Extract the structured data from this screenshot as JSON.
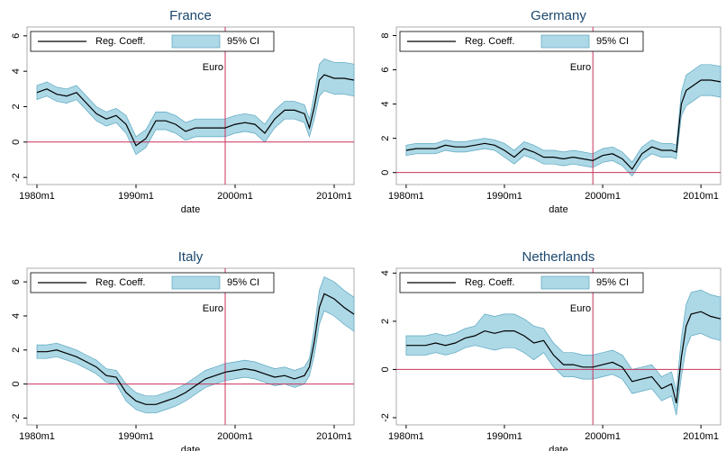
{
  "chart_data": [
    {
      "type": "line",
      "title": "France",
      "xlabel": "date",
      "x": [
        1980,
        1981,
        1982,
        1983,
        1984,
        1985,
        1986,
        1987,
        1988,
        1989,
        1990,
        1991,
        1992,
        1993,
        1994,
        1995,
        1996,
        1997,
        1998,
        1999,
        2000,
        2001,
        2002,
        2003,
        2004,
        2005,
        2006,
        2007,
        2007.5,
        2008,
        2008.5,
        2009,
        2010,
        2011,
        2012
      ],
      "xlim": [
        1979,
        2012
      ],
      "xticks": [
        {
          "value": 1980,
          "label": "1980m1"
        },
        {
          "value": 1990,
          "label": "1990m1"
        },
        {
          "value": 2000,
          "label": "2000m1"
        },
        {
          "value": 2010,
          "label": "2010m1"
        }
      ],
      "ylim": [
        -2.4,
        6.5
      ],
      "yticks": [
        -2,
        0,
        2,
        4,
        6
      ],
      "series": [
        {
          "name": "Reg. Coeff.",
          "color": "#000000",
          "values": [
            2.8,
            3.0,
            2.7,
            2.6,
            2.8,
            2.2,
            1.6,
            1.3,
            1.5,
            1.0,
            -0.2,
            0.2,
            1.2,
            1.2,
            1.0,
            0.6,
            0.8,
            0.8,
            0.8,
            0.8,
            1.0,
            1.1,
            1.0,
            0.5,
            1.3,
            1.8,
            1.8,
            1.6,
            0.8,
            2.0,
            3.5,
            3.8,
            3.6,
            3.6,
            3.5
          ]
        },
        {
          "name": "95% CI",
          "color": "#add8e6",
          "lower": [
            2.4,
            2.6,
            2.3,
            2.2,
            2.4,
            1.8,
            1.2,
            0.9,
            1.1,
            0.5,
            -0.7,
            -0.3,
            0.7,
            0.7,
            0.5,
            0.1,
            0.3,
            0.3,
            0.3,
            0.3,
            0.5,
            0.6,
            0.5,
            0.0,
            0.8,
            1.3,
            1.3,
            1.1,
            0.3,
            1.3,
            2.6,
            2.9,
            2.7,
            2.7,
            2.6
          ],
          "upper": [
            3.2,
            3.4,
            3.1,
            3.0,
            3.2,
            2.6,
            2.0,
            1.7,
            1.9,
            1.5,
            0.3,
            0.7,
            1.7,
            1.7,
            1.5,
            1.1,
            1.3,
            1.3,
            1.3,
            1.3,
            1.5,
            1.6,
            1.5,
            1.0,
            1.8,
            2.3,
            2.3,
            2.1,
            1.3,
            2.7,
            4.4,
            4.7,
            4.5,
            4.5,
            4.4
          ]
        }
      ],
      "hline": 0,
      "vline": 1999,
      "ref_color": "#c8325a",
      "annotation": "Euro",
      "legend": "top"
    },
    {
      "type": "line",
      "title": "Germany",
      "xlabel": "date",
      "x": [
        1980,
        1981,
        1982,
        1983,
        1984,
        1985,
        1986,
        1987,
        1988,
        1989,
        1990,
        1991,
        1992,
        1993,
        1994,
        1995,
        1996,
        1997,
        1998,
        1999,
        2000,
        2001,
        2002,
        2003,
        2004,
        2005,
        2006,
        2007,
        2007.5,
        2008,
        2008.5,
        2009,
        2010,
        2011,
        2012
      ],
      "xlim": [
        1979,
        2012
      ],
      "xticks": [
        {
          "value": 1980,
          "label": "1980m1"
        },
        {
          "value": 1990,
          "label": "1990m1"
        },
        {
          "value": 2000,
          "label": "2000m1"
        },
        {
          "value": 2010,
          "label": "2010m1"
        }
      ],
      "ylim": [
        -0.7,
        8.5
      ],
      "yticks": [
        0,
        2,
        4,
        6,
        8
      ],
      "series": [
        {
          "name": "Reg. Coeff.",
          "color": "#000000",
          "values": [
            1.3,
            1.4,
            1.4,
            1.4,
            1.6,
            1.5,
            1.5,
            1.6,
            1.7,
            1.6,
            1.3,
            0.9,
            1.4,
            1.2,
            0.9,
            0.9,
            0.8,
            0.9,
            0.8,
            0.7,
            1.0,
            1.1,
            0.8,
            0.2,
            1.1,
            1.5,
            1.3,
            1.3,
            1.2,
            4.0,
            4.8,
            5.0,
            5.4,
            5.4,
            5.3
          ]
        },
        {
          "name": "95% CI",
          "color": "#add8e6",
          "lower": [
            1.0,
            1.1,
            1.1,
            1.1,
            1.3,
            1.2,
            1.2,
            1.3,
            1.4,
            1.3,
            0.9,
            0.5,
            1.0,
            0.8,
            0.5,
            0.5,
            0.4,
            0.5,
            0.4,
            0.3,
            0.6,
            0.7,
            0.4,
            -0.2,
            0.7,
            1.1,
            0.9,
            0.9,
            0.8,
            3.3,
            3.9,
            4.1,
            4.5,
            4.5,
            4.4
          ],
          "upper": [
            1.6,
            1.7,
            1.7,
            1.7,
            1.9,
            1.8,
            1.8,
            1.9,
            2.0,
            1.9,
            1.7,
            1.3,
            1.8,
            1.6,
            1.3,
            1.3,
            1.2,
            1.3,
            1.2,
            1.1,
            1.4,
            1.5,
            1.2,
            0.6,
            1.5,
            1.9,
            1.7,
            1.7,
            1.6,
            4.7,
            5.7,
            5.9,
            6.3,
            6.3,
            6.2
          ]
        }
      ],
      "hline": 0,
      "vline": 1999,
      "ref_color": "#c8325a",
      "annotation": "Euro",
      "legend": "top"
    },
    {
      "type": "line",
      "title": "Italy",
      "xlabel": "date",
      "x": [
        1980,
        1981,
        1982,
        1983,
        1984,
        1985,
        1986,
        1987,
        1988,
        1989,
        1990,
        1991,
        1992,
        1993,
        1994,
        1995,
        1996,
        1997,
        1998,
        1999,
        2000,
        2001,
        2002,
        2003,
        2004,
        2005,
        2006,
        2007,
        2007.5,
        2008,
        2008.5,
        2009,
        2010,
        2011,
        2012
      ],
      "xlim": [
        1979,
        2012
      ],
      "xticks": [
        {
          "value": 1980,
          "label": "1980m1"
        },
        {
          "value": 1990,
          "label": "1990m1"
        },
        {
          "value": 2000,
          "label": "2000m1"
        },
        {
          "value": 2010,
          "label": "2010m1"
        }
      ],
      "ylim": [
        -2.4,
        6.8
      ],
      "yticks": [
        -2,
        0,
        2,
        4,
        6
      ],
      "series": [
        {
          "name": "Reg. Coeff.",
          "color": "#000000",
          "values": [
            1.9,
            1.9,
            2.0,
            1.8,
            1.6,
            1.3,
            1.0,
            0.5,
            0.4,
            -0.5,
            -1.0,
            -1.2,
            -1.2,
            -1.0,
            -0.8,
            -0.5,
            -0.1,
            0.3,
            0.5,
            0.7,
            0.8,
            0.9,
            0.8,
            0.6,
            0.4,
            0.5,
            0.3,
            0.5,
            1.0,
            2.5,
            4.5,
            5.3,
            5.0,
            4.5,
            4.1
          ]
        },
        {
          "name": "95% CI",
          "color": "#add8e6",
          "lower": [
            1.5,
            1.5,
            1.6,
            1.4,
            1.2,
            0.9,
            0.6,
            0.1,
            0.0,
            -1.0,
            -1.5,
            -1.7,
            -1.7,
            -1.5,
            -1.3,
            -1.0,
            -0.6,
            -0.2,
            0.0,
            0.2,
            0.3,
            0.4,
            0.3,
            0.1,
            -0.1,
            0.0,
            -0.2,
            0.0,
            0.5,
            1.7,
            3.5,
            4.3,
            4.0,
            3.5,
            3.1
          ],
          "upper": [
            2.3,
            2.3,
            2.4,
            2.2,
            2.0,
            1.7,
            1.4,
            0.9,
            0.8,
            0.0,
            -0.5,
            -0.7,
            -0.7,
            -0.5,
            -0.3,
            0.0,
            0.4,
            0.8,
            1.0,
            1.2,
            1.3,
            1.4,
            1.3,
            1.1,
            0.9,
            1.0,
            0.8,
            1.0,
            1.5,
            3.3,
            5.5,
            6.3,
            6.0,
            5.5,
            5.1
          ]
        }
      ],
      "hline": 0,
      "vline": 1999,
      "ref_color": "#c8325a",
      "annotation": "Euro",
      "legend": "top"
    },
    {
      "type": "line",
      "title": "Netherlands",
      "xlabel": "date",
      "x": [
        1980,
        1981,
        1982,
        1983,
        1984,
        1985,
        1986,
        1987,
        1988,
        1989,
        1990,
        1991,
        1992,
        1993,
        1994,
        1995,
        1996,
        1997,
        1998,
        1999,
        2000,
        2001,
        2002,
        2003,
        2004,
        2005,
        2006,
        2007,
        2007.5,
        2008,
        2008.5,
        2009,
        2010,
        2011,
        2012
      ],
      "xlim": [
        1979,
        2012
      ],
      "xticks": [
        {
          "value": 1980,
          "label": "1980m1"
        },
        {
          "value": 1990,
          "label": "1990m1"
        },
        {
          "value": 2000,
          "label": "2000m1"
        },
        {
          "value": 2010,
          "label": "2010m1"
        }
      ],
      "ylim": [
        -2.3,
        4.2
      ],
      "yticks": [
        -2,
        0,
        2,
        4
      ],
      "series": [
        {
          "name": "Reg. Coeff.",
          "color": "#000000",
          "values": [
            1.0,
            1.0,
            1.0,
            1.1,
            1.0,
            1.1,
            1.3,
            1.4,
            1.6,
            1.5,
            1.6,
            1.6,
            1.4,
            1.1,
            1.2,
            0.6,
            0.2,
            0.2,
            0.1,
            0.1,
            0.2,
            0.3,
            0.1,
            -0.5,
            -0.4,
            -0.3,
            -0.8,
            -0.6,
            -1.4,
            0.5,
            1.8,
            2.3,
            2.4,
            2.2,
            2.1
          ]
        },
        {
          "name": "95% CI",
          "color": "#add8e6",
          "lower": [
            0.6,
            0.6,
            0.6,
            0.7,
            0.6,
            0.7,
            0.9,
            1.0,
            0.9,
            0.8,
            0.9,
            0.9,
            0.7,
            0.4,
            0.7,
            0.1,
            -0.3,
            -0.3,
            -0.4,
            -0.4,
            -0.3,
            -0.2,
            -0.4,
            -1.0,
            -0.9,
            -0.8,
            -1.3,
            -1.1,
            -1.9,
            -0.3,
            0.9,
            1.4,
            1.5,
            1.3,
            1.2
          ],
          "upper": [
            1.4,
            1.4,
            1.4,
            1.5,
            1.4,
            1.5,
            1.7,
            1.8,
            2.3,
            2.2,
            2.3,
            2.3,
            2.1,
            1.8,
            1.7,
            1.1,
            0.7,
            0.7,
            0.6,
            0.6,
            0.7,
            0.8,
            0.6,
            0.0,
            0.1,
            0.2,
            -0.3,
            -0.1,
            -0.9,
            1.3,
            2.7,
            3.2,
            3.3,
            3.1,
            3.0
          ]
        }
      ],
      "hline": 0,
      "vline": 1999,
      "ref_color": "#c8325a",
      "annotation": "Euro",
      "legend": "top"
    }
  ]
}
